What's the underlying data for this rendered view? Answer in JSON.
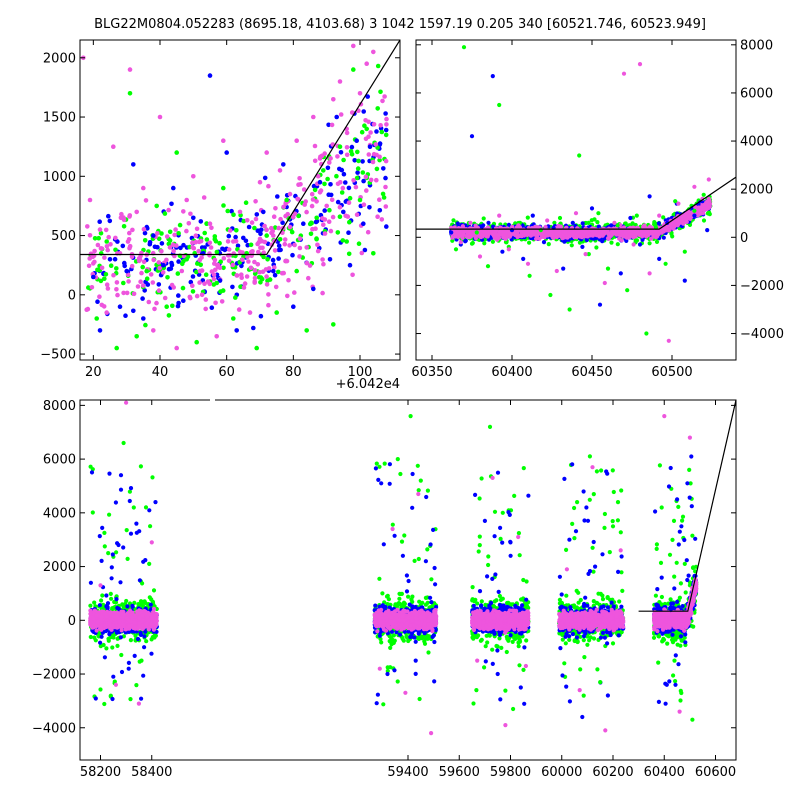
{
  "figure": {
    "title": "BLG22M0804.052283 (8695.18, 4103.68)   3 1042 1597.19 0.205 340 [60521.746, 60523.949]"
  },
  "colors": {
    "blue": "#0000ff",
    "green": "#00ff00",
    "pink": "#ee55dd"
  },
  "chart_data": [
    {
      "type": "scatter",
      "name": "zoom-panel",
      "xlim": [
        16,
        112
      ],
      "ylim": [
        -550,
        2150
      ],
      "x_offset_label": "+6.042e4",
      "xticks": [
        20,
        40,
        60,
        80,
        100
      ],
      "yticks": [
        -500,
        0,
        500,
        1000,
        1500,
        2000
      ],
      "model_line": {
        "x": [
          16,
          67,
          72,
          112
        ],
        "y": [
          340,
          340,
          340,
          2150
        ]
      },
      "series": [
        {
          "color": "blue",
          "points": [
            [
              20,
              150
            ],
            [
              22,
              -300
            ],
            [
              25,
              300
            ],
            [
              28,
              -100
            ],
            [
              30,
              200
            ],
            [
              32,
              1100
            ],
            [
              35,
              -200
            ],
            [
              38,
              500
            ],
            [
              41,
              250
            ],
            [
              44,
              900
            ],
            [
              47,
              -50
            ],
            [
              50,
              650
            ],
            [
              53,
              350
            ],
            [
              55,
              1850
            ],
            [
              58,
              120
            ],
            [
              60,
              1200
            ],
            [
              63,
              -300
            ],
            [
              65,
              480
            ],
            [
              68,
              -280
            ],
            [
              71,
              700
            ],
            [
              74,
              200
            ],
            [
              77,
              1100
            ],
            [
              80,
              -100
            ],
            [
              83,
              600
            ],
            [
              86,
              50
            ],
            [
              88,
              950
            ],
            [
              91,
              300
            ],
            [
              93,
              1500
            ],
            [
              95,
              700
            ],
            [
              97,
              250
            ],
            [
              99,
              1300
            ],
            [
              101,
              600
            ],
            [
              103,
              1250
            ]
          ]
        },
        {
          "color": "green",
          "points": [
            [
              21,
              -200
            ],
            [
              24,
              450
            ],
            [
              27,
              -450
            ],
            [
              29,
              100
            ],
            [
              31,
              1700
            ],
            [
              33,
              -350
            ],
            [
              36,
              200
            ],
            [
              39,
              750
            ],
            [
              42,
              -100
            ],
            [
              45,
              1200
            ],
            [
              48,
              300
            ],
            [
              51,
              -400
            ],
            [
              54,
              600
            ],
            [
              57,
              100
            ],
            [
              59,
              900
            ],
            [
              62,
              -200
            ],
            [
              66,
              350
            ],
            [
              69,
              -450
            ],
            [
              72,
              500
            ],
            [
              75,
              -150
            ],
            [
              78,
              800
            ],
            [
              81,
              200
            ],
            [
              84,
              -300
            ],
            [
              87,
              650
            ],
            [
              89,
              1050
            ],
            [
              92,
              -250
            ],
            [
              94,
              1250
            ],
            [
              96,
              450
            ],
            [
              98,
              1900
            ],
            [
              100,
              800
            ],
            [
              102,
              1400
            ],
            [
              104,
              350
            ]
          ]
        },
        {
          "color": "pink",
          "points": [
            [
              17,
              2000
            ],
            [
              19,
              800
            ],
            [
              22,
              550
            ],
            [
              24,
              -150
            ],
            [
              26,
              1250
            ],
            [
              28,
              350
            ],
            [
              31,
              1900
            ],
            [
              33,
              700
            ],
            [
              35,
              900
            ],
            [
              38,
              -300
            ],
            [
              40,
              1500
            ],
            [
              43,
              400
            ],
            [
              45,
              -450
            ],
            [
              48,
              800
            ],
            [
              50,
              1000
            ],
            [
              52,
              200
            ],
            [
              55,
              600
            ],
            [
              57,
              -350
            ],
            [
              59,
              1300
            ],
            [
              62,
              450
            ],
            [
              64,
              700
            ],
            [
              67,
              -150
            ],
            [
              70,
              950
            ],
            [
              72,
              1200
            ],
            [
              74,
              500
            ],
            [
              76,
              1050
            ],
            [
              79,
              850
            ],
            [
              81,
              1300
            ],
            [
              84,
              400
            ],
            [
              86,
              1500
            ],
            [
              88,
              1150
            ],
            [
              90,
              750
            ],
            [
              92,
              1650
            ],
            [
              94,
              1800
            ],
            [
              96,
              1400
            ],
            [
              98,
              2100
            ],
            [
              100,
              1700
            ],
            [
              102,
              1950
            ],
            [
              104,
              2050
            ]
          ]
        }
      ]
    },
    {
      "type": "scatter",
      "name": "recent-season-panel",
      "xlim": [
        60340,
        60540
      ],
      "ylim": [
        -5100,
        8200
      ],
      "yaxis_position": "right",
      "xticks": [
        60350,
        60400,
        60450,
        60500
      ],
      "yticks": [
        -4000,
        -2000,
        0,
        2000,
        4000,
        6000,
        8000
      ],
      "model_line": {
        "x": [
          60340,
          60487,
          60492,
          60540
        ],
        "y": [
          340,
          340,
          340,
          2500
        ]
      },
      "series": [
        {
          "color": "blue",
          "points": [
            [
              60362,
              200
            ],
            [
              60368,
              -300
            ],
            [
              60375,
              4200
            ],
            [
              60382,
              500
            ],
            [
              60388,
              6700
            ],
            [
              60394,
              -600
            ],
            [
              60400,
              300
            ],
            [
              60407,
              -900
            ],
            [
              60413,
              900
            ],
            [
              60420,
              -200
            ],
            [
              60426,
              400
            ],
            [
              60432,
              -1300
            ],
            [
              60438,
              600
            ],
            [
              60444,
              -400
            ],
            [
              60450,
              1200
            ],
            [
              60455,
              -2800
            ],
            [
              60462,
              500
            ],
            [
              60468,
              -1500
            ],
            [
              60474,
              800
            ],
            [
              60480,
              -300
            ],
            [
              60486,
              1700
            ],
            [
              60492,
              -900
            ],
            [
              60497,
              600
            ],
            [
              60503,
              1400
            ],
            [
              60508,
              -1800
            ],
            [
              60514,
              900
            ],
            [
              60519,
              1500
            ],
            [
              60522,
              300
            ]
          ]
        },
        {
          "color": "green",
          "points": [
            [
              60365,
              -500
            ],
            [
              60370,
              7900
            ],
            [
              60378,
              200
            ],
            [
              60385,
              -1200
            ],
            [
              60392,
              5500
            ],
            [
              60398,
              -400
            ],
            [
              60405,
              600
            ],
            [
              60411,
              -1600
            ],
            [
              60418,
              300
            ],
            [
              60424,
              -2400
            ],
            [
              60430,
              800
            ],
            [
              60436,
              -3000
            ],
            [
              60442,
              3400
            ],
            [
              60448,
              -700
            ],
            [
              60454,
              1000
            ],
            [
              60460,
              -1300
            ],
            [
              60466,
              500
            ],
            [
              60472,
              -2200
            ],
            [
              60478,
              900
            ],
            [
              60484,
              -4000
            ],
            [
              60490,
              400
            ],
            [
              60496,
              -1100
            ],
            [
              60502,
              1500
            ],
            [
              60508,
              -600
            ],
            [
              60514,
              1100
            ],
            [
              60520,
              700
            ]
          ]
        },
        {
          "color": "pink",
          "points": [
            [
              60362,
              400
            ],
            [
              60368,
              -200
            ],
            [
              60374,
              600
            ],
            [
              60380,
              -800
            ],
            [
              60386,
              300
            ],
            [
              60392,
              900
            ],
            [
              60398,
              -500
            ],
            [
              60404,
              500
            ],
            [
              60410,
              -1100
            ],
            [
              60416,
              200
            ],
            [
              60422,
              700
            ],
            [
              60428,
              -1400
            ],
            [
              60434,
              400
            ],
            [
              60440,
              1000
            ],
            [
              60446,
              -700
            ],
            [
              60452,
              300
            ],
            [
              60458,
              -1900
            ],
            [
              60464,
              600
            ],
            [
              60470,
              6800
            ],
            [
              60476,
              -300
            ],
            [
              60480,
              7200
            ],
            [
              60486,
              -1500
            ],
            [
              60492,
              900
            ],
            [
              60498,
              -4300
            ],
            [
              60504,
              1400
            ],
            [
              60509,
              700
            ],
            [
              60514,
              2100
            ],
            [
              60519,
              1600
            ],
            [
              60523,
              2400
            ]
          ]
        }
      ]
    },
    {
      "type": "scatter",
      "name": "full-lightcurve-panel",
      "xlim": [
        58120,
        60680
      ],
      "ylim": [
        -5200,
        8200
      ],
      "axis_break": [
        58450,
        59250
      ],
      "xticks": [
        58200,
        58400,
        59400,
        59600,
        59800,
        60000,
        60200,
        60400,
        60600
      ],
      "yticks": [
        -4000,
        -2000,
        0,
        2000,
        4000,
        6000,
        8000
      ],
      "model_line": {
        "x": [
          60300,
          60487,
          60492,
          60680
        ],
        "y": [
          340,
          340,
          340,
          8200
        ]
      },
      "seasons": [
        [
          58160,
          58420
        ],
        [
          59270,
          59510
        ],
        [
          59650,
          59870
        ],
        [
          59990,
          60240
        ],
        [
          60360,
          60525
        ]
      ],
      "highlight_points": {
        "blue": [
          [
            58250,
            -2100
          ],
          [
            58280,
            5400
          ],
          [
            58310,
            -1800
          ],
          [
            58340,
            3600
          ],
          [
            58370,
            -1000
          ],
          [
            59320,
            -2000
          ],
          [
            59380,
            2400
          ],
          [
            59430,
            -1500
          ],
          [
            59470,
            2200
          ],
          [
            59700,
            3700
          ],
          [
            59750,
            -2000
          ],
          [
            59800,
            2900
          ],
          [
            59840,
            -2500
          ],
          [
            60030,
            3000
          ],
          [
            60080,
            -3600
          ],
          [
            60130,
            2000
          ],
          [
            60180,
            -2800
          ],
          [
            60220,
            1800
          ],
          [
            60410,
            -2400
          ],
          [
            60450,
            4500
          ],
          [
            60490,
            1500
          ]
        ],
        "green": [
          [
            58230,
            2500
          ],
          [
            58290,
            6600
          ],
          [
            58330,
            4200
          ],
          [
            58360,
            -1500
          ],
          [
            58390,
            2100
          ],
          [
            59300,
            1000
          ],
          [
            59360,
            6000
          ],
          [
            59410,
            7600
          ],
          [
            59450,
            5200
          ],
          [
            59480,
            -1200
          ],
          [
            59680,
            2800
          ],
          [
            59720,
            7200
          ],
          [
            59770,
            4000
          ],
          [
            59810,
            -3300
          ],
          [
            59850,
            1500
          ],
          [
            60010,
            -1600
          ],
          [
            60060,
            4400
          ],
          [
            60110,
            6100
          ],
          [
            60150,
            -2300
          ],
          [
            60200,
            3500
          ],
          [
            60390,
            4200
          ],
          [
            60440,
            -1500
          ],
          [
            60480,
            2100
          ],
          [
            60510,
            -3700
          ]
        ],
        "pink": [
          [
            58200,
            1300
          ],
          [
            58260,
            -2400
          ],
          [
            58300,
            8100
          ],
          [
            58350,
            -3100
          ],
          [
            58400,
            2900
          ],
          [
            59290,
            -1800
          ],
          [
            59340,
            3400
          ],
          [
            59390,
            -2700
          ],
          [
            59440,
            4700
          ],
          [
            59490,
            -4200
          ],
          [
            59670,
            -1500
          ],
          [
            59730,
            5300
          ],
          [
            59780,
            -3900
          ],
          [
            59830,
            3100
          ],
          [
            59860,
            -1700
          ],
          [
            60020,
            1900
          ],
          [
            60070,
            -2600
          ],
          [
            60120,
            5700
          ],
          [
            60170,
            -4100
          ],
          [
            60230,
            2600
          ],
          [
            60400,
            7600
          ],
          [
            60460,
            -3400
          ],
          [
            60500,
            6800
          ]
        ]
      }
    }
  ]
}
